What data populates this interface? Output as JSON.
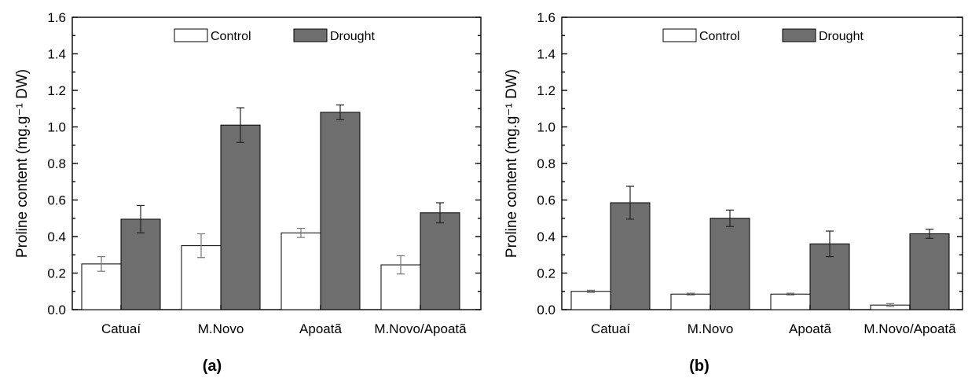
{
  "colors": {
    "control": "#ffffff",
    "drought": "#6e6e6e",
    "axis": "#000000"
  },
  "chart_data": [
    {
      "type": "bar",
      "panel_label": "(a)",
      "ylabel": "Proline content (mg.g⁻¹ DW)",
      "ylim": [
        0,
        1.6
      ],
      "yticks": [
        0.0,
        0.2,
        0.4,
        0.6,
        0.8,
        1.0,
        1.2,
        1.4,
        1.6
      ],
      "ytick_labels": [
        "0.0",
        "0.2",
        "0.4",
        "0.6",
        "0.8",
        "1.0",
        "1.2",
        "1.4",
        "1.6"
      ],
      "categories": [
        "Catuaí",
        "M.Novo",
        "Apoatã",
        "M.Novo/Apoatã"
      ],
      "legend_position": "top-center",
      "series": [
        {
          "name": "Control",
          "values": [
            0.25,
            0.35,
            0.42,
            0.245
          ],
          "errors": [
            0.04,
            0.065,
            0.025,
            0.05
          ]
        },
        {
          "name": "Drought",
          "values": [
            0.495,
            1.01,
            1.08,
            0.53
          ],
          "errors": [
            0.075,
            0.095,
            0.04,
            0.055
          ]
        }
      ]
    },
    {
      "type": "bar",
      "panel_label": "(b)",
      "ylabel": "Proline content (mg.g⁻¹ DW)",
      "ylim": [
        0,
        1.6
      ],
      "yticks": [
        0.0,
        0.2,
        0.4,
        0.6,
        0.8,
        1.0,
        1.2,
        1.4,
        1.6
      ],
      "ytick_labels": [
        "0.0",
        "0.2",
        "0.4",
        "0.6",
        "0.8",
        "1.0",
        "1.2",
        "1.4",
        "1.6"
      ],
      "categories": [
        "Catuaí",
        "M.Novo",
        "Apoatã",
        "M.Novo/Apoatã"
      ],
      "legend_position": "top-center",
      "series": [
        {
          "name": "Control",
          "values": [
            0.1,
            0.085,
            0.085,
            0.025
          ],
          "errors": [
            0.006,
            0.005,
            0.005,
            0.008
          ]
        },
        {
          "name": "Drought",
          "values": [
            0.585,
            0.5,
            0.36,
            0.415
          ],
          "errors": [
            0.09,
            0.045,
            0.07,
            0.025
          ]
        }
      ]
    }
  ]
}
